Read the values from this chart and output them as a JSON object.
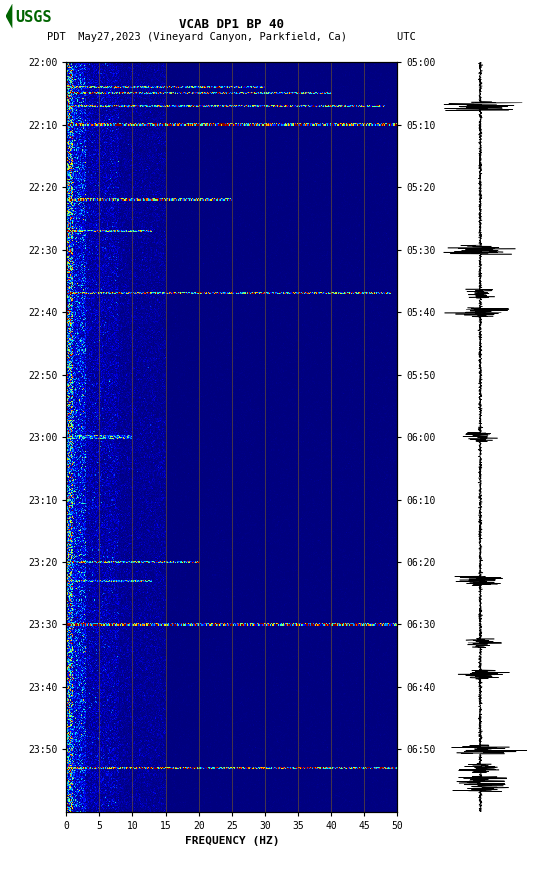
{
  "title_line1": "VCAB DP1 BP 40",
  "title_line2": "PDT  May27,2023 (Vineyard Canyon, Parkfield, Ca)        UTC",
  "xlabel": "FREQUENCY (HZ)",
  "freq_min": 0,
  "freq_max": 50,
  "freq_ticks": [
    0,
    5,
    10,
    15,
    20,
    25,
    30,
    35,
    40,
    45,
    50
  ],
  "time_labels_left": [
    "22:00",
    "22:10",
    "22:20",
    "22:30",
    "22:40",
    "22:50",
    "23:00",
    "23:10",
    "23:20",
    "23:30",
    "23:40",
    "23:50"
  ],
  "time_labels_right": [
    "05:00",
    "05:10",
    "05:20",
    "05:30",
    "05:40",
    "05:50",
    "06:00",
    "06:10",
    "06:20",
    "06:30",
    "06:40",
    "06:50"
  ],
  "n_time_steps": 720,
  "n_freq_steps": 500,
  "background_color": "#ffffff",
  "spectrogram_bg": "#00008B",
  "vertical_line_color": "#8B6914",
  "vertical_lines_freq": [
    5,
    10,
    15,
    20,
    25,
    30,
    35,
    40,
    45
  ],
  "colormap": "jet",
  "logo_color": "#006400",
  "event_minutes": [
    4,
    5,
    7,
    10,
    22,
    27,
    37,
    60,
    80,
    83,
    90,
    113
  ],
  "total_minutes": 120
}
